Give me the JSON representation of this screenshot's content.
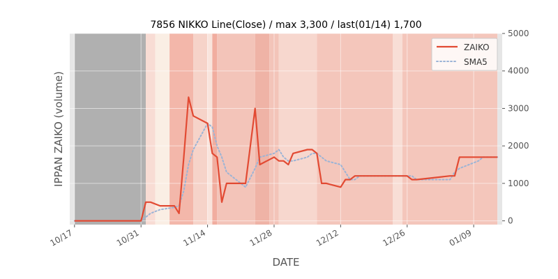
{
  "chart_data": {
    "type": "line",
    "title": "7856 NIKKO Line(Close) / max 3,300 / last(01/14) 1,700",
    "xlabel": "DATE",
    "ylabel": "IPPAN ZAIKO (volume)",
    "ylim": [
      -100,
      5000
    ],
    "yticks": [
      "0",
      "1000",
      "2000",
      "3000",
      "4000",
      "5000"
    ],
    "y_axis_side": "right",
    "x_start": "2016-10-16",
    "x_end": "2017-01-15",
    "xticks": [
      {
        "date": "2016-10-17",
        "label": "10/17"
      },
      {
        "date": "2016-10-31",
        "label": "10/31"
      },
      {
        "date": "2016-11-14",
        "label": "11/14"
      },
      {
        "date": "2016-11-28",
        "label": "11/28"
      },
      {
        "date": "2016-12-12",
        "label": "12/12"
      },
      {
        "date": "2016-12-26",
        "label": "12/26"
      },
      {
        "date": "2017-01-09",
        "label": "01/09"
      }
    ],
    "legend": {
      "position": "top-right"
    },
    "grid": true,
    "background_bands": [
      {
        "from": "2016-10-16",
        "to": "2016-10-17",
        "color": "#e6e6e6"
      },
      {
        "from": "2016-10-17",
        "to": "2016-11-01",
        "color": "#b0b0b0"
      },
      {
        "from": "2016-11-01",
        "to": "2016-11-03",
        "color": "#f8dcd4"
      },
      {
        "from": "2016-11-03",
        "to": "2016-11-06",
        "color": "#faeee4"
      },
      {
        "from": "2016-11-06",
        "to": "2016-11-11",
        "color": "#f3b7aa"
      },
      {
        "from": "2016-11-11",
        "to": "2016-11-14",
        "color": "#f6d3c9"
      },
      {
        "from": "2016-11-14",
        "to": "2016-11-15",
        "color": "#f9e4dc"
      },
      {
        "from": "2016-11-15",
        "to": "2016-11-16",
        "color": "#f1ad9f"
      },
      {
        "from": "2016-11-16",
        "to": "2016-11-24",
        "color": "#f3c4b9"
      },
      {
        "from": "2016-11-24",
        "to": "2016-11-27",
        "color": "#efb3a6"
      },
      {
        "from": "2016-11-27",
        "to": "2016-11-29",
        "color": "#f3c4b9"
      },
      {
        "from": "2016-11-29",
        "to": "2016-12-07",
        "color": "#f7d7ce"
      },
      {
        "from": "2016-12-07",
        "to": "2016-12-23",
        "color": "#f4c6bb"
      },
      {
        "from": "2016-12-23",
        "to": "2016-12-25",
        "color": "#f8ded6"
      },
      {
        "from": "2016-12-25",
        "to": "2017-01-14",
        "color": "#f4c6bb"
      },
      {
        "from": "2017-01-14",
        "to": "2017-01-15",
        "color": "#e6e6e6"
      }
    ],
    "series": [
      {
        "name": "ZAIKO",
        "style": "solid",
        "color": "#e24a33",
        "x": [
          "2016-10-17",
          "2016-10-18",
          "2016-10-19",
          "2016-10-20",
          "2016-10-21",
          "2016-10-24",
          "2016-10-25",
          "2016-10-26",
          "2016-10-27",
          "2016-10-28",
          "2016-10-31",
          "2016-11-01",
          "2016-11-02",
          "2016-11-04",
          "2016-11-07",
          "2016-11-08",
          "2016-11-09",
          "2016-11-10",
          "2016-11-11",
          "2016-11-14",
          "2016-11-15",
          "2016-11-16",
          "2016-11-17",
          "2016-11-18",
          "2016-11-21",
          "2016-11-22",
          "2016-11-24",
          "2016-11-25",
          "2016-11-28",
          "2016-11-29",
          "2016-11-30",
          "2016-12-01",
          "2016-12-02",
          "2016-12-05",
          "2016-12-06",
          "2016-12-07",
          "2016-12-08",
          "2016-12-09",
          "2016-12-12",
          "2016-12-13",
          "2016-12-14",
          "2016-12-15",
          "2016-12-16",
          "2016-12-19",
          "2016-12-20",
          "2016-12-21",
          "2016-12-22",
          "2016-12-26",
          "2016-12-27",
          "2016-12-28",
          "2017-01-04",
          "2017-01-05",
          "2017-01-06",
          "2017-01-10",
          "2017-01-11",
          "2017-01-12",
          "2017-01-13",
          "2017-01-14"
        ],
        "values": [
          0,
          0,
          0,
          0,
          0,
          0,
          0,
          0,
          0,
          0,
          0,
          500,
          500,
          400,
          400,
          200,
          1700,
          3300,
          2800,
          2600,
          1800,
          1700,
          500,
          1000,
          1000,
          1000,
          3000,
          1500,
          1700,
          1600,
          1600,
          1500,
          1800,
          1900,
          1900,
          1800,
          1000,
          1000,
          900,
          1100,
          1100,
          1200,
          1200,
          1200,
          1200,
          1200,
          1200,
          1200,
          1100,
          1100,
          1200,
          1200,
          1700,
          1700,
          1700,
          1700,
          1700,
          1700
        ]
      },
      {
        "name": "SMA5",
        "style": "dotted",
        "color": "#9bb4d6",
        "x": [
          "2016-10-17",
          "2016-10-31",
          "2016-11-01",
          "2016-11-02",
          "2016-11-04",
          "2016-11-07",
          "2016-11-08",
          "2016-11-09",
          "2016-11-10",
          "2016-11-11",
          "2016-11-14",
          "2016-11-15",
          "2016-11-16",
          "2016-11-17",
          "2016-11-18",
          "2016-11-21",
          "2016-11-22",
          "2016-11-24",
          "2016-11-25",
          "2016-11-28",
          "2016-11-29",
          "2016-11-30",
          "2016-12-01",
          "2016-12-02",
          "2016-12-05",
          "2016-12-06",
          "2016-12-07",
          "2016-12-08",
          "2016-12-09",
          "2016-12-12",
          "2016-12-13",
          "2016-12-14",
          "2016-12-15",
          "2016-12-16",
          "2016-12-19",
          "2016-12-20",
          "2016-12-21",
          "2016-12-22",
          "2016-12-26",
          "2016-12-27",
          "2016-12-28",
          "2017-01-04",
          "2017-01-05",
          "2017-01-06",
          "2017-01-10",
          "2017-01-11",
          "2017-01-12",
          "2017-01-13",
          "2017-01-14"
        ],
        "values": [
          0,
          0,
          100,
          200,
          300,
          360,
          400,
          800,
          1500,
          1900,
          2600,
          2500,
          2000,
          1700,
          1300,
          1000,
          900,
          1400,
          1700,
          1800,
          1900,
          1700,
          1600,
          1600,
          1700,
          1800,
          1800,
          1700,
          1600,
          1500,
          1300,
          1100,
          1100,
          1200,
          1200,
          1200,
          1200,
          1200,
          1200,
          1200,
          1100,
          1100,
          1300,
          1400,
          1600,
          1700,
          1700,
          1700,
          1700
        ]
      }
    ]
  }
}
